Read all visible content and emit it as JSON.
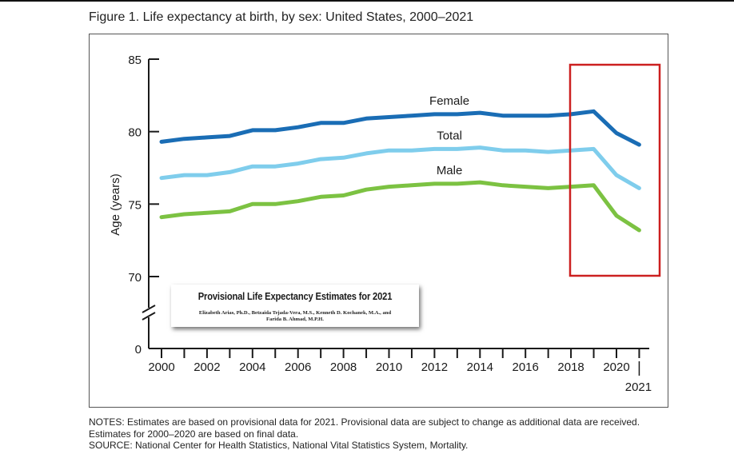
{
  "figure": {
    "title": "Figure 1. Life expectancy at birth, by sex: United States, 2000–2021",
    "notes": [
      "NOTES: Estimates are based on provisional data for 2021. Provisional data are subject to change as additional data are received.",
      "Estimates for 2000–2020 are based on final data.",
      "SOURCE: National Center for Health Statistics, National Vital Statistics System, Mortality."
    ],
    "inset": {
      "title": "Provisional Life Expectancy Estimates for 2021",
      "authors_line1": "Elizabeth Arias, Ph.D., Betzaida Tejada-Vera, M.S., Kenneth D. Kochanek, M.A., and",
      "authors_line2": "Farida B. Ahmad, M.P.H."
    },
    "highlight_color": "#cc2020"
  },
  "chart_data": {
    "type": "line",
    "title": "Figure 1. Life expectancy at birth, by sex: United States, 2000–2021",
    "xlabel": "",
    "ylabel": "Age (years)",
    "x": [
      2000,
      2001,
      2002,
      2003,
      2004,
      2005,
      2006,
      2007,
      2008,
      2009,
      2010,
      2011,
      2012,
      2013,
      2014,
      2015,
      2016,
      2017,
      2018,
      2019,
      2020,
      2021
    ],
    "x_tick_labels": [
      "2000",
      "2002",
      "2004",
      "2006",
      "2008",
      "2010",
      "2012",
      "2014",
      "2016",
      "2018",
      "2020",
      "2021"
    ],
    "y_tick_labels": [
      "0",
      "70",
      "75",
      "80",
      "85"
    ],
    "ylim": [
      70,
      85
    ],
    "axis_break": true,
    "grid": false,
    "legend": "inline labels",
    "series": [
      {
        "name": "Female",
        "color": "#1a6db5",
        "values": [
          79.3,
          79.5,
          79.6,
          79.7,
          80.1,
          80.1,
          80.3,
          80.6,
          80.6,
          80.9,
          81.0,
          81.1,
          81.2,
          81.2,
          81.3,
          81.1,
          81.1,
          81.1,
          81.2,
          81.4,
          79.9,
          79.1
        ]
      },
      {
        "name": "Total",
        "color": "#7fcdec",
        "values": [
          76.8,
          77.0,
          77.0,
          77.2,
          77.6,
          77.6,
          77.8,
          78.1,
          78.2,
          78.5,
          78.7,
          78.7,
          78.8,
          78.8,
          78.9,
          78.7,
          78.7,
          78.6,
          78.7,
          78.8,
          77.0,
          76.1
        ]
      },
      {
        "name": "Male",
        "color": "#7cc242",
        "values": [
          74.1,
          74.3,
          74.4,
          74.5,
          75.0,
          75.0,
          75.2,
          75.5,
          75.6,
          76.0,
          76.2,
          76.3,
          76.4,
          76.4,
          76.5,
          76.3,
          76.2,
          76.1,
          76.2,
          76.3,
          74.2,
          73.2
        ]
      }
    ],
    "highlight_range": [
      2018,
      2021
    ]
  }
}
